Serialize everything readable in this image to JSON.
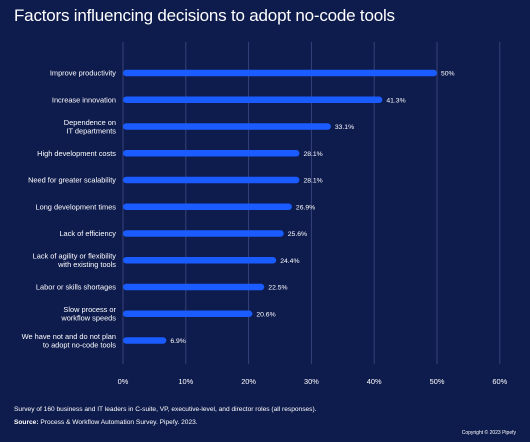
{
  "chart_data": {
    "type": "bar",
    "orientation": "horizontal",
    "title": "Factors influencing decisions to adopt no-code tools",
    "categories": [
      [
        "Improve productivity"
      ],
      [
        "Increase innovation"
      ],
      [
        "Dependence on",
        "IT departments"
      ],
      [
        "High development costs"
      ],
      [
        "Need for greater scalability"
      ],
      [
        "Long development times"
      ],
      [
        "Lack of efficiency"
      ],
      [
        "Lack of agility or flexibility",
        "with existing tools"
      ],
      [
        "Labor or skills shortages"
      ],
      [
        "Slow process or",
        "workflow speeds"
      ],
      [
        "We have not and do not plan",
        "to adopt no-code tools"
      ]
    ],
    "values": [
      50,
      41.3,
      33.1,
      28.1,
      28.1,
      26.9,
      25.6,
      24.4,
      22.5,
      20.6,
      6.9
    ],
    "value_labels": [
      "50%",
      "41.3%",
      "33.1%",
      "28.1%",
      "28.1%",
      "26.9%",
      "25.6%",
      "24.4%",
      "22.5%",
      "20.6%",
      "6.9%"
    ],
    "xlim": [
      0,
      60
    ],
    "x_ticks": [
      0,
      10,
      20,
      30,
      40,
      50,
      60
    ],
    "x_tick_labels": [
      "0%",
      "10%",
      "20%",
      "30%",
      "40%",
      "50%",
      "60%"
    ],
    "grid": "vertical",
    "bar_color": "#1a5cff",
    "grid_color": "#35427a",
    "background_color": "#0e1b4d"
  },
  "footer": {
    "survey_note": "Survey of 160 business and IT leaders in C-suite, VP, executive-level, and director roles (all responses).",
    "source_label": "Source:",
    "source_text": " Process & Workflow Automation Survey. Pipefy. 2023.",
    "copyright": "Copyright © 2023 Pipefy"
  }
}
